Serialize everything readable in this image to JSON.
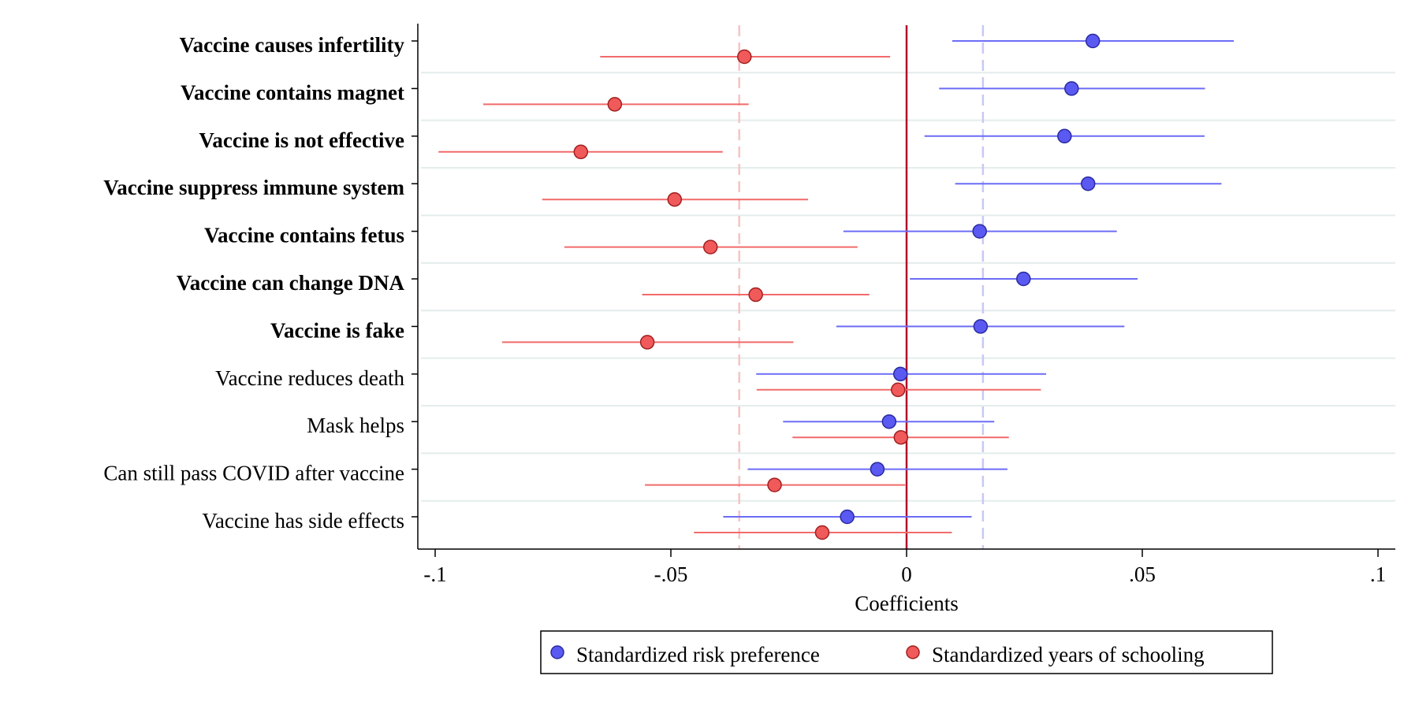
{
  "chart_data": {
    "type": "coefficient-plot",
    "xlabel": "Coefficients",
    "xlim": [
      -0.1,
      0.1
    ],
    "xticks": [
      -0.1,
      -0.05,
      0,
      0.05,
      0.1
    ],
    "xtick_labels": [
      "-.1",
      "-.05",
      "0",
      ".05",
      ".1"
    ],
    "categories": [
      {
        "label": "Vaccine causes infertility",
        "bold": true
      },
      {
        "label": "Vaccine contains magnet",
        "bold": true
      },
      {
        "label": "Vaccine is not effective",
        "bold": true
      },
      {
        "label": "Vaccine suppress immune system",
        "bold": true
      },
      {
        "label": "Vaccine contains fetus",
        "bold": true
      },
      {
        "label": "Vaccine can change DNA",
        "bold": true
      },
      {
        "label": "Vaccine is fake",
        "bold": true
      },
      {
        "label": "Vaccine reduces death",
        "bold": false
      },
      {
        "label": "Mask helps",
        "bold": false
      },
      {
        "label": "Can still pass COVID after vaccine",
        "bold": false
      },
      {
        "label": "Vaccine has side effects",
        "bold": false
      }
    ],
    "series": [
      {
        "name": "Standardized risk preference",
        "color": "#5a5af2",
        "line_color": "#6c6cf7",
        "mean_line": 0.0162,
        "estimates": [
          0.0395,
          0.035,
          0.0335,
          0.0385,
          0.0155,
          0.0248,
          0.0157,
          -0.0013,
          -0.0037,
          -0.0062,
          -0.0126
        ],
        "ci_low": [
          0.0097,
          0.0069,
          0.0038,
          0.0103,
          -0.0134,
          0.0007,
          -0.0149,
          -0.0319,
          -0.0262,
          -0.0337,
          -0.0389
        ],
        "ci_high": [
          0.0694,
          0.0633,
          0.0632,
          0.0668,
          0.0446,
          0.049,
          0.0462,
          0.0296,
          0.0186,
          0.0214,
          0.0138
        ]
      },
      {
        "name": "Standardized years of schooling",
        "color": "#f15a5a",
        "line_color": "#f26a6a",
        "mean_line": -0.0355,
        "estimates": [
          -0.0344,
          -0.0619,
          -0.0691,
          -0.0492,
          -0.0416,
          -0.032,
          -0.055,
          -0.0018,
          -0.0012,
          -0.028,
          -0.0179
        ],
        "ci_low": [
          -0.065,
          -0.0898,
          -0.0993,
          -0.0773,
          -0.0726,
          -0.0561,
          -0.0858,
          -0.0318,
          -0.0242,
          -0.0555,
          -0.0451
        ],
        "ci_high": [
          -0.0035,
          -0.0335,
          -0.039,
          -0.0209,
          -0.0104,
          -0.0079,
          -0.024,
          0.0285,
          0.0217,
          -0.0003,
          0.0096
        ]
      }
    ],
    "zero_line_color": "#b0102a",
    "legend_position": "bottom"
  }
}
